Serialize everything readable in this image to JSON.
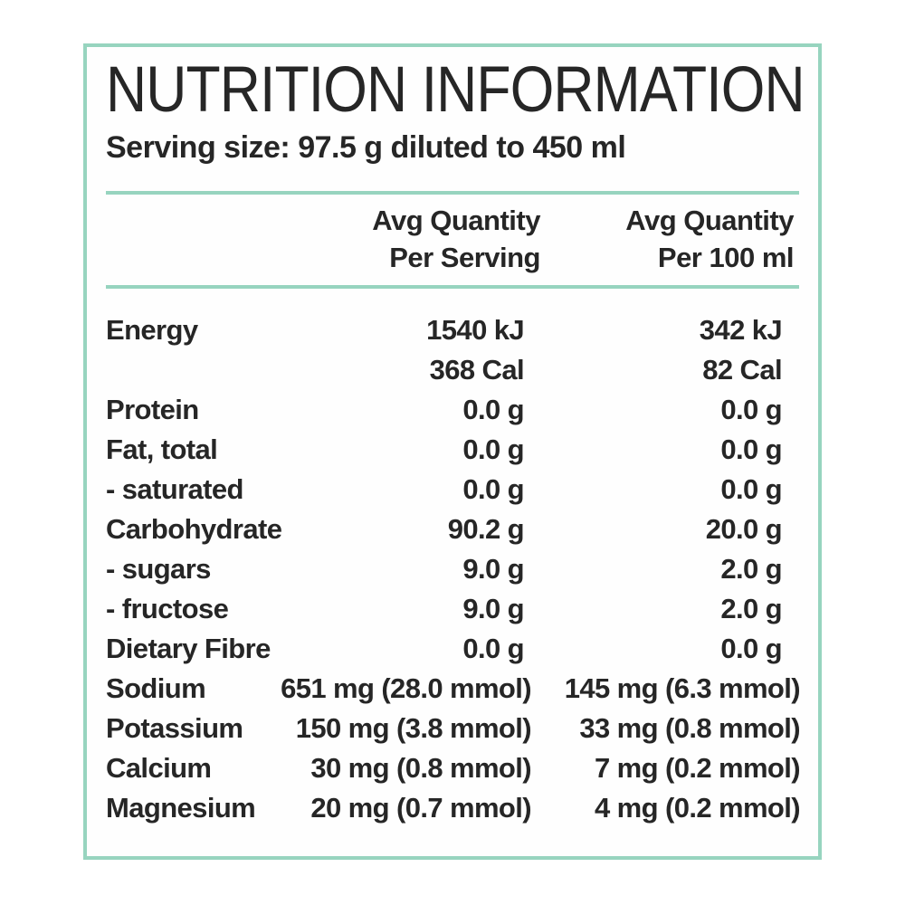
{
  "label": {
    "title": "NUTRITION INFORMATION",
    "serving_size": "Serving size: 97.5 g diluted to 450 ml",
    "header": {
      "per_serving_line1": "Avg Quantity",
      "per_serving_line2": "Per Serving",
      "per_100ml_line1": "Avg Quantity",
      "per_100ml_line2": "Per 100 ml"
    },
    "rows": [
      {
        "label": "Energy",
        "per_serving": "1540 kJ",
        "per_100ml": "342 kJ"
      },
      {
        "label": "",
        "per_serving": "368 Cal",
        "per_100ml": "82 Cal"
      },
      {
        "label": "Protein",
        "per_serving": "0.0 g",
        "per_100ml": "0.0 g"
      },
      {
        "label": "Fat, total",
        "per_serving": "0.0 g",
        "per_100ml": "0.0 g"
      },
      {
        "label": "- saturated",
        "per_serving": "0.0 g",
        "per_100ml": "0.0 g"
      },
      {
        "label": "Carbohydrate",
        "per_serving": "90.2 g",
        "per_100ml": "20.0 g"
      },
      {
        "label": "- sugars",
        "per_serving": "9.0 g",
        "per_100ml": "2.0 g"
      },
      {
        "label": "- fructose",
        "per_serving": "9.0 g",
        "per_100ml": "2.0 g"
      },
      {
        "label": "Dietary Fibre",
        "per_serving": "0.0 g",
        "per_100ml": "0.0 g"
      },
      {
        "label": "Sodium",
        "per_serving": "651 mg (28.0 mmol)",
        "per_100ml": "145 mg (6.3 mmol)"
      },
      {
        "label": "Potassium",
        "per_serving": "150 mg (3.8 mmol)",
        "per_100ml": "33 mg (0.8 mmol)"
      },
      {
        "label": "Calcium",
        "per_serving": "30 mg (0.8 mmol)",
        "per_100ml": "7 mg (0.2 mmol)"
      },
      {
        "label": "Magnesium",
        "per_serving": "20 mg (0.7 mmol)",
        "per_100ml": "4 mg (0.2 mmol)"
      }
    ],
    "colors": {
      "accent": "#97d4bf",
      "text": "#262626"
    }
  }
}
